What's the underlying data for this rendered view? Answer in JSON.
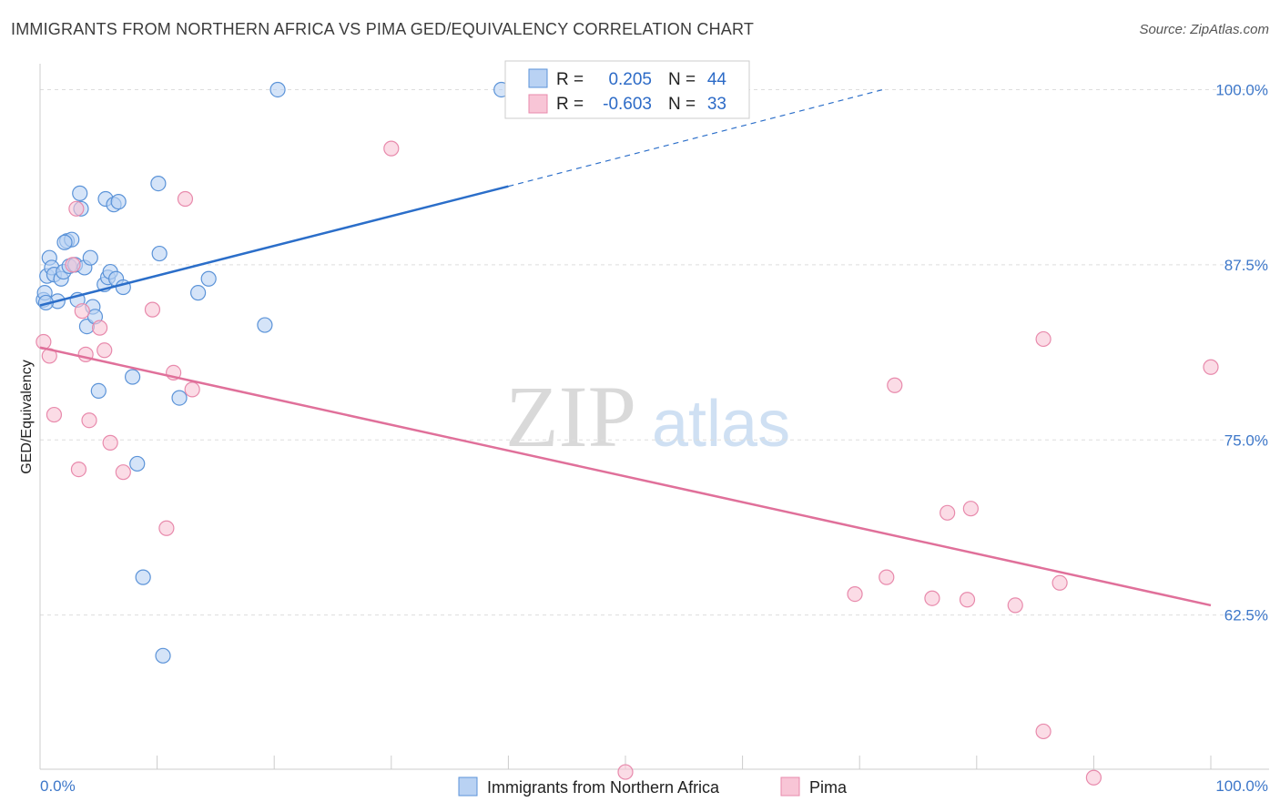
{
  "header": {
    "title": "IMMIGRANTS FROM NORTHERN AFRICA VS PIMA GED/EQUIVALENCY CORRELATION CHART",
    "source": "Source: ZipAtlas.com"
  },
  "watermark": {
    "zip": "ZIP",
    "atlas": "atlas"
  },
  "colors": {
    "blue_fill": "#b9d2f3",
    "blue_stroke": "#5b93d8",
    "blue_line": "#2b6ec9",
    "pink_fill": "#f8c5d6",
    "pink_stroke": "#e88aac",
    "pink_line": "#e0709a",
    "grid": "#dddddd",
    "tick_text": "#3d77c9"
  },
  "chart_data": {
    "type": "scatter",
    "title": "IMMIGRANTS FROM NORTHERN AFRICA VS PIMA GED/EQUIVALENCY CORRELATION CHART",
    "xlabel": "",
    "ylabel": "GED/Equivalency",
    "xlim": [
      0,
      100
    ],
    "ylim": [
      51.5,
      101.2
    ],
    "x_tick_labels": [
      "0.0%",
      "100.0%"
    ],
    "y_ticks": [
      {
        "value": 100.0,
        "label": "100.0%"
      },
      {
        "value": 87.5,
        "label": "87.5%"
      },
      {
        "value": 75.0,
        "label": "75.0%"
      },
      {
        "value": 62.5,
        "label": "62.5%"
      }
    ],
    "legend": {
      "rows": [
        {
          "r_label": "R =",
          "r_value": "0.205",
          "n_label": "N =",
          "n_value": "44"
        },
        {
          "r_label": "R =",
          "r_value": "-0.603",
          "n_label": "N =",
          "n_value": "33"
        }
      ]
    },
    "series": [
      {
        "name": "Immigrants from Northern Africa",
        "color": "blue",
        "r": 0.205,
        "n": 44,
        "trend": {
          "x0": 0.0,
          "y0": 84.6,
          "x1": 40.0,
          "y1": 93.1,
          "dash_x_end": 72.0,
          "dash_y_end": 100.0
        },
        "points": [
          [
            0.3,
            85.0
          ],
          [
            0.4,
            85.5
          ],
          [
            0.6,
            86.7
          ],
          [
            0.8,
            88.0
          ],
          [
            1.0,
            87.3
          ],
          [
            1.2,
            86.8
          ],
          [
            1.5,
            84.9
          ],
          [
            1.8,
            86.5
          ],
          [
            2.0,
            87.0
          ],
          [
            2.3,
            89.2
          ],
          [
            2.5,
            87.4
          ],
          [
            2.7,
            89.3
          ],
          [
            3.0,
            87.5
          ],
          [
            3.2,
            85.0
          ],
          [
            3.4,
            92.6
          ],
          [
            3.5,
            91.5
          ],
          [
            3.8,
            87.3
          ],
          [
            4.0,
            83.1
          ],
          [
            4.3,
            88.0
          ],
          [
            4.5,
            84.5
          ],
          [
            4.7,
            83.8
          ],
          [
            5.0,
            78.5
          ],
          [
            5.5,
            86.1
          ],
          [
            5.6,
            92.2
          ],
          [
            5.8,
            86.6
          ],
          [
            6.0,
            87.0
          ],
          [
            6.3,
            91.8
          ],
          [
            6.5,
            86.5
          ],
          [
            6.7,
            92.0
          ],
          [
            7.1,
            85.9
          ],
          [
            7.9,
            79.5
          ],
          [
            8.3,
            73.3
          ],
          [
            8.8,
            65.2
          ],
          [
            10.1,
            93.3
          ],
          [
            10.2,
            88.3
          ],
          [
            10.5,
            59.6
          ],
          [
            11.9,
            78.0
          ],
          [
            13.5,
            85.5
          ],
          [
            14.4,
            86.5
          ],
          [
            19.2,
            83.2
          ],
          [
            20.3,
            100.0
          ],
          [
            39.4,
            100.0
          ],
          [
            0.5,
            84.8
          ],
          [
            2.1,
            89.1
          ]
        ]
      },
      {
        "name": "Pima",
        "color": "pink",
        "r": -0.603,
        "n": 33,
        "trend": {
          "x0": 0.0,
          "y0": 81.6,
          "x1": 100.0,
          "y1": 63.2
        },
        "points": [
          [
            0.3,
            82.0
          ],
          [
            0.8,
            81.0
          ],
          [
            1.2,
            76.8
          ],
          [
            2.8,
            87.5
          ],
          [
            3.1,
            91.5
          ],
          [
            3.3,
            72.9
          ],
          [
            3.6,
            84.2
          ],
          [
            3.9,
            81.1
          ],
          [
            4.2,
            76.4
          ],
          [
            5.1,
            83.0
          ],
          [
            5.5,
            81.4
          ],
          [
            6.0,
            74.8
          ],
          [
            7.1,
            72.7
          ],
          [
            9.6,
            84.3
          ],
          [
            10.8,
            68.7
          ],
          [
            11.4,
            79.8
          ],
          [
            12.4,
            92.2
          ],
          [
            13.0,
            78.6
          ],
          [
            30.0,
            95.8
          ],
          [
            50.0,
            51.3
          ],
          [
            69.6,
            64.0
          ],
          [
            72.3,
            65.2
          ],
          [
            73.0,
            78.9
          ],
          [
            76.2,
            63.7
          ],
          [
            77.5,
            69.8
          ],
          [
            79.2,
            63.6
          ],
          [
            79.5,
            70.1
          ],
          [
            83.3,
            63.2
          ],
          [
            85.7,
            54.2
          ],
          [
            85.7,
            82.2
          ],
          [
            87.1,
            64.8
          ],
          [
            90.0,
            50.9
          ],
          [
            100.0,
            80.2
          ]
        ]
      }
    ]
  },
  "bottom_legend": {
    "items": [
      {
        "label": "Immigrants from Northern Africa"
      },
      {
        "label": "Pima"
      }
    ]
  }
}
